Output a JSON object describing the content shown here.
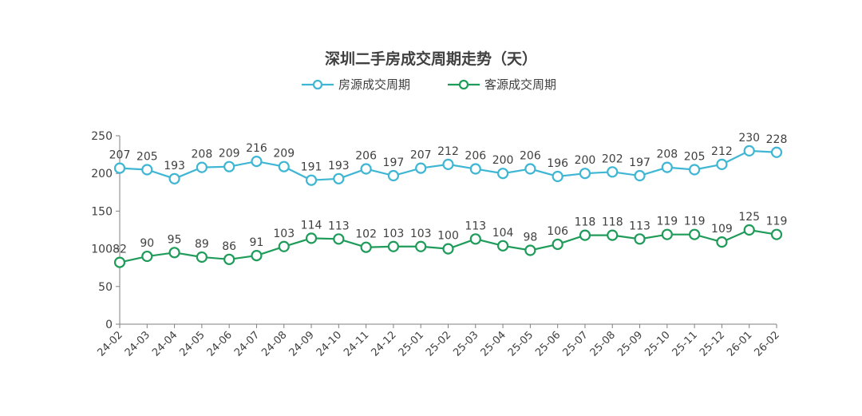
{
  "chart_data": {
    "type": "line",
    "title": "深圳二手房成交周期走势（天）",
    "xlabel": "",
    "ylabel": "",
    "ylim": [
      0,
      250
    ],
    "yticks": [
      0,
      50,
      100,
      150,
      200,
      250
    ],
    "grid": false,
    "legend_position": "top",
    "categories": [
      "24-02",
      "24-03",
      "24-04",
      "24-05",
      "24-06",
      "24-07",
      "24-08",
      "24-09",
      "24-10",
      "24-11",
      "24-12",
      "25-01",
      "25-02",
      "25-03",
      "25-04",
      "25-05",
      "25-06",
      "25-07",
      "25-08",
      "25-09",
      "25-10",
      "25-11",
      "25-12",
      "26-01",
      "26-02"
    ],
    "series": [
      {
        "name": "房源成交周期",
        "color": "#3fb6d3",
        "values": [
          207,
          205,
          193,
          208,
          209,
          216,
          209,
          191,
          193,
          206,
          197,
          207,
          212,
          206,
          200,
          206,
          196,
          200,
          202,
          197,
          208,
          205,
          212,
          230,
          228
        ]
      },
      {
        "name": "客源成交周期",
        "color": "#1f9b5a",
        "values": [
          82,
          90,
          95,
          89,
          86,
          91,
          103,
          114,
          113,
          102,
          103,
          103,
          100,
          113,
          104,
          98,
          106,
          118,
          118,
          113,
          119,
          119,
          109,
          125,
          119
        ]
      }
    ]
  }
}
